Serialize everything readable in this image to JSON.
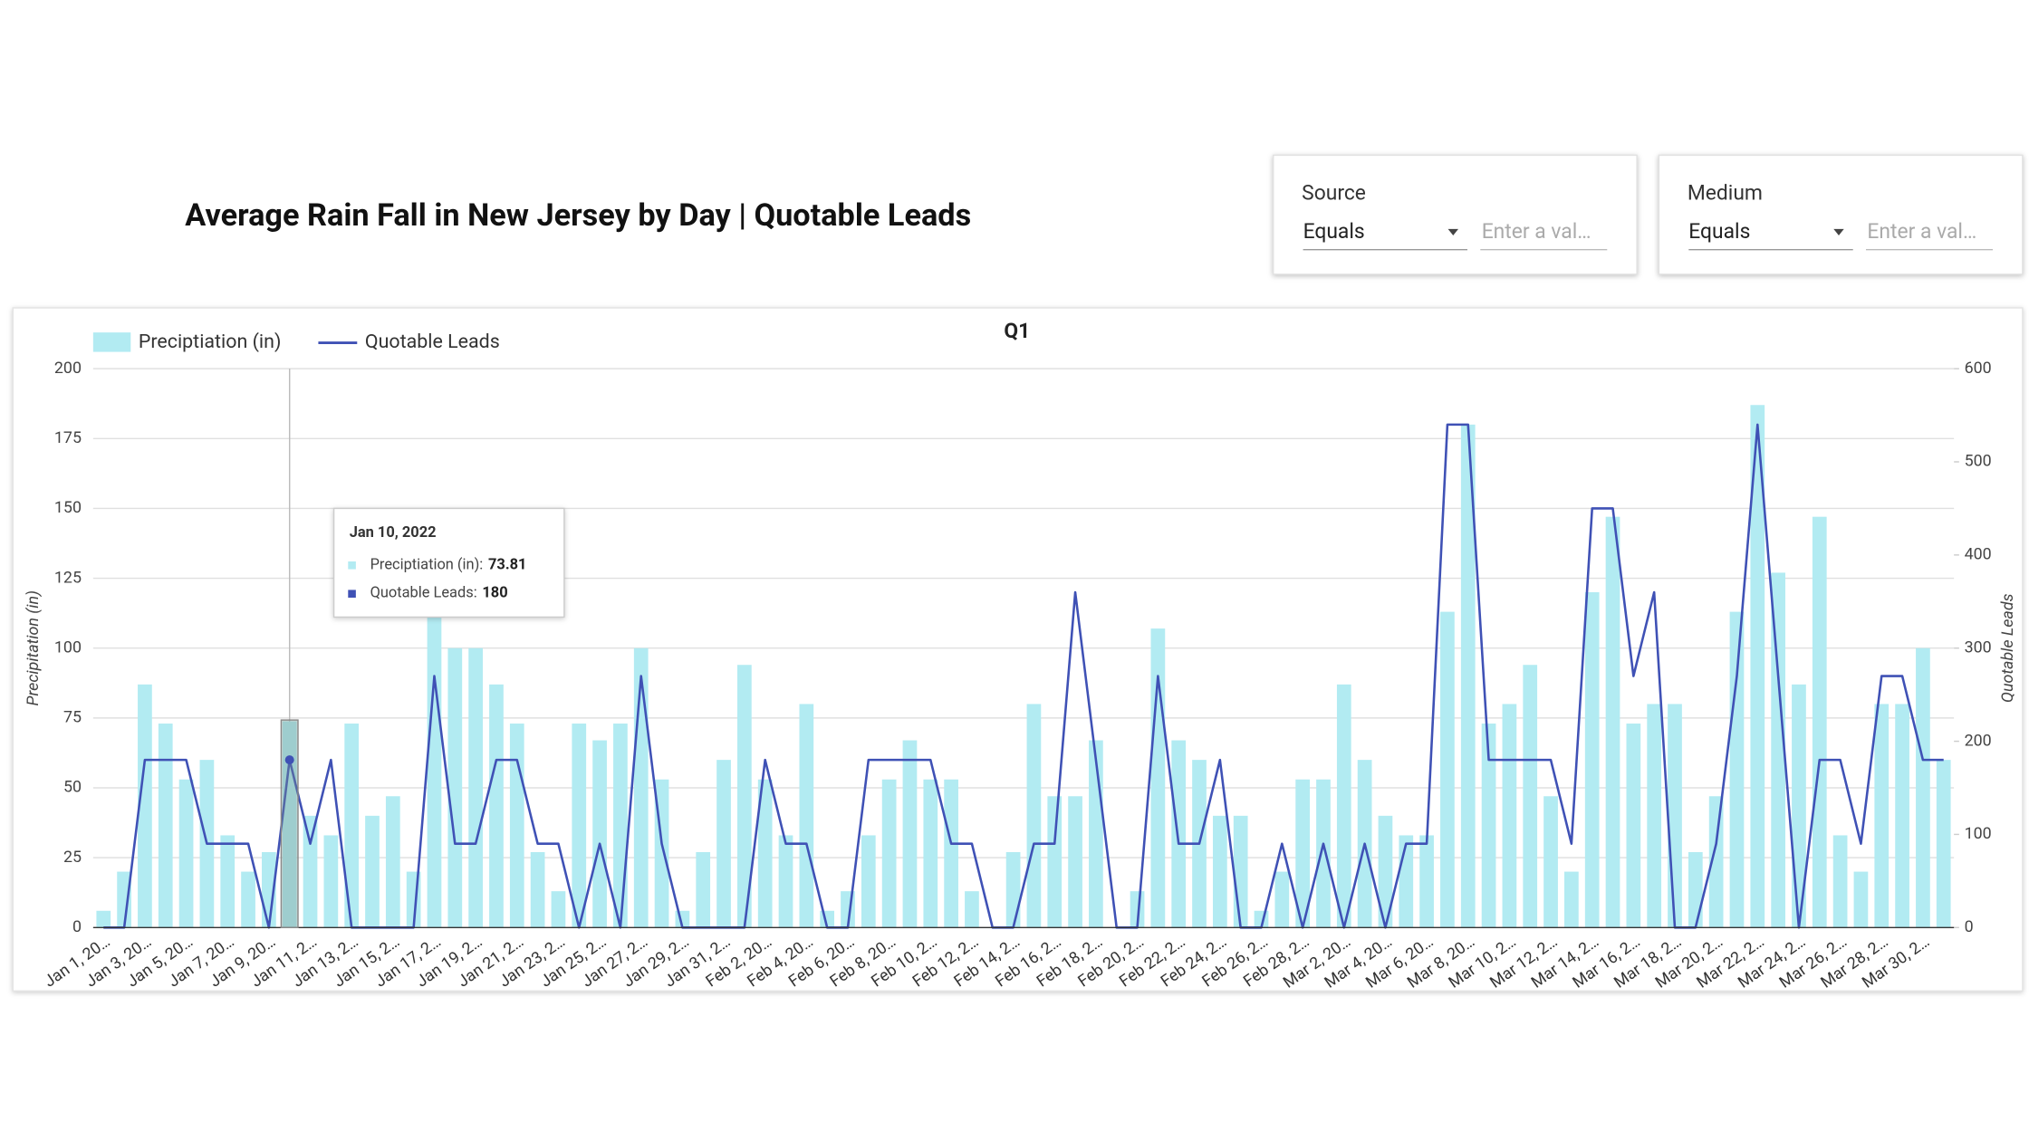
{
  "header": {
    "title": "Average Rain Fall in New Jersey by Day | Quotable Leads"
  },
  "filters": [
    {
      "label": "Source",
      "operator": "Equals",
      "placeholder": "Enter a val…"
    },
    {
      "label": "Medium",
      "operator": "Equals",
      "placeholder": "Enter a val…"
    }
  ],
  "tooltip": {
    "title": "Jan 10, 2022",
    "labels": [
      "Preciptiation (in):",
      "Quotable Leads:"
    ]
  },
  "chart_data": {
    "type": "bar-line",
    "title": "Q1",
    "y_label": "Precipitation (in)",
    "y2_label": "Quotable Leads",
    "categories": [
      "Jan 1, 20…",
      null,
      "Jan 3, 20…",
      null,
      "Jan 5, 20…",
      null,
      "Jan 7, 20…",
      null,
      "Jan 9, 20…",
      null,
      "Jan 11, 2…",
      null,
      "Jan 13, 2…",
      null,
      "Jan 15, 2…",
      null,
      "Jan 17, 2…",
      null,
      "Jan 19, 2…",
      null,
      "Jan 21, 2…",
      null,
      "Jan 23, 2…",
      null,
      "Jan 25, 2…",
      null,
      "Jan 27, 2…",
      null,
      "Jan 29, 2…",
      null,
      "Jan 31, 2…",
      null,
      "Feb 2, 20…",
      null,
      "Feb 4, 20…",
      null,
      "Feb 6, 20…",
      null,
      "Feb 8, 20…",
      null,
      "Feb 10, 2…",
      null,
      "Feb 12, 2…",
      null,
      "Feb 14, 2…",
      null,
      "Feb 16, 2…",
      null,
      "Feb 18, 2…",
      null,
      "Feb 20, 2…",
      null,
      "Feb 22, 2…",
      null,
      "Feb 24, 2…",
      null,
      "Feb 26, 2…",
      null,
      "Feb 28, 2…",
      null,
      "Mar 2, 20…",
      null,
      "Mar 4, 20…",
      null,
      "Mar 6, 20…",
      null,
      "Mar 8, 20…",
      null,
      "Mar 10, 2…",
      null,
      "Mar 12, 2…",
      null,
      "Mar 14, 2…",
      null,
      "Mar 16, 2…",
      null,
      "Mar 18, 2…",
      null,
      "Mar 20, 2…",
      null,
      "Mar 22, 2…",
      null,
      "Mar 24, 2…",
      null,
      "Mar 26, 2…",
      null,
      "Mar 28, 2…",
      null,
      "Mar 30, 2…",
      null
    ],
    "series": [
      {
        "name": "Preciptiation (in)",
        "color": "#b2ebf2",
        "type": "bar",
        "values": [
          6,
          20,
          87,
          73,
          53,
          60,
          33,
          20,
          27,
          73.81,
          40,
          33,
          73,
          40,
          47,
          20,
          113,
          100,
          100,
          87,
          73,
          27,
          13,
          73,
          67,
          73,
          100,
          53,
          6,
          27,
          60,
          94,
          53,
          33,
          80,
          6,
          13,
          33,
          53,
          67,
          53,
          53,
          13,
          0,
          27,
          80,
          47,
          47,
          67,
          0,
          13,
          107,
          67,
          60,
          40,
          40,
          6,
          20,
          53,
          53,
          87,
          60,
          40,
          33,
          33,
          113,
          180,
          73,
          80,
          94,
          47,
          20,
          120,
          147,
          73,
          80,
          80,
          27,
          47,
          113,
          187,
          127,
          87,
          147,
          33,
          20,
          80,
          80,
          100,
          60
        ]
      },
      {
        "name": "Quotable Leads",
        "color": "#3f51b5",
        "type": "line",
        "axis": "y2",
        "values": [
          0,
          0,
          180,
          180,
          180,
          90,
          90,
          90,
          0,
          180,
          90,
          180,
          0,
          0,
          0,
          0,
          270,
          90,
          90,
          180,
          180,
          90,
          90,
          0,
          90,
          0,
          270,
          90,
          0,
          0,
          0,
          0,
          180,
          90,
          90,
          0,
          0,
          180,
          180,
          180,
          180,
          90,
          90,
          0,
          0,
          90,
          90,
          360,
          180,
          0,
          0,
          270,
          90,
          90,
          180,
          0,
          0,
          90,
          0,
          90,
          0,
          90,
          0,
          90,
          90,
          540,
          540,
          180,
          180,
          180,
          180,
          90,
          450,
          450,
          270,
          360,
          0,
          0,
          90,
          270,
          540,
          270,
          0,
          180,
          180,
          90,
          270,
          270,
          180,
          180
        ]
      }
    ],
    "ylim": [
      0,
      200
    ],
    "yticks": [
      0,
      25,
      50,
      75,
      100,
      125,
      150,
      175,
      200
    ],
    "y2lim": [
      0,
      600
    ],
    "y2ticks": [
      0,
      100,
      200,
      300,
      400,
      500,
      600
    ],
    "grid": true,
    "legend": "top-left",
    "highlight_index": 9
  }
}
